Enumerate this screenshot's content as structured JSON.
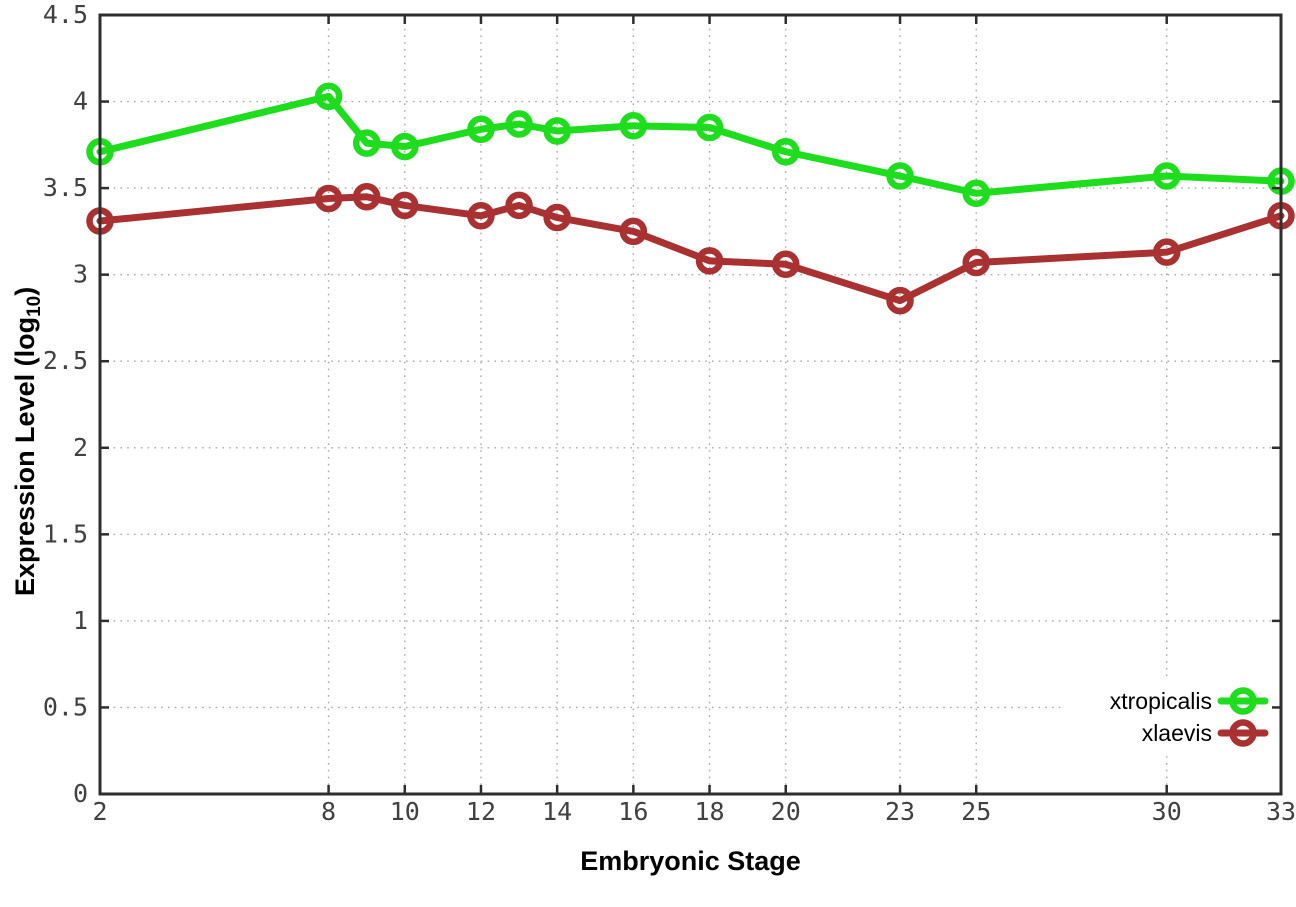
{
  "chart_data": {
    "type": "line",
    "title": "",
    "xlabel": "Embryonic Stage",
    "ylabel": "Expression Level (log10)",
    "ylabel_parts": {
      "main": "Expression Level (log",
      "sub": "10",
      "end": ")"
    },
    "x": [
      2,
      8,
      9,
      10,
      12,
      13,
      14,
      16,
      18,
      20,
      23,
      25,
      30,
      33
    ],
    "series": [
      {
        "name": "xtropicalis",
        "color": "#1ddd1d",
        "values": [
          3.71,
          4.03,
          3.76,
          3.74,
          3.84,
          3.87,
          3.83,
          3.86,
          3.85,
          3.71,
          3.57,
          3.47,
          3.57,
          3.54
        ]
      },
      {
        "name": "xlaevis",
        "color": "#a93131",
        "values": [
          3.31,
          3.44,
          3.45,
          3.4,
          3.34,
          3.4,
          3.33,
          3.25,
          3.08,
          3.06,
          2.85,
          3.07,
          3.13,
          3.34
        ]
      }
    ],
    "xticks": [
      2,
      8,
      10,
      12,
      14,
      16,
      18,
      20,
      23,
      25,
      30,
      33
    ],
    "xtick_labels": [
      "2",
      "8",
      "10",
      "12",
      "14",
      "16",
      "18",
      "20",
      "23",
      "25",
      "30",
      "33"
    ],
    "yticks": [
      0,
      0.5,
      1,
      1.5,
      2,
      2.5,
      3,
      3.5,
      4,
      4.5
    ],
    "ytick_labels": [
      "0",
      "0.5",
      "1",
      "1.5",
      "2",
      "2.5",
      "3",
      "3.5",
      "4",
      "4.5"
    ],
    "xlim": [
      2,
      33
    ],
    "ylim": [
      0,
      4.5
    ],
    "grid": true,
    "legend_position": "bottom-right",
    "legend_entries": [
      "xtropicalis",
      "xlaevis"
    ],
    "colors": {
      "background": "#ffffff",
      "border": "#2e2e2e",
      "grid": "#a8a8a8",
      "tick_text": "#414141",
      "label_text": "#000000"
    }
  }
}
